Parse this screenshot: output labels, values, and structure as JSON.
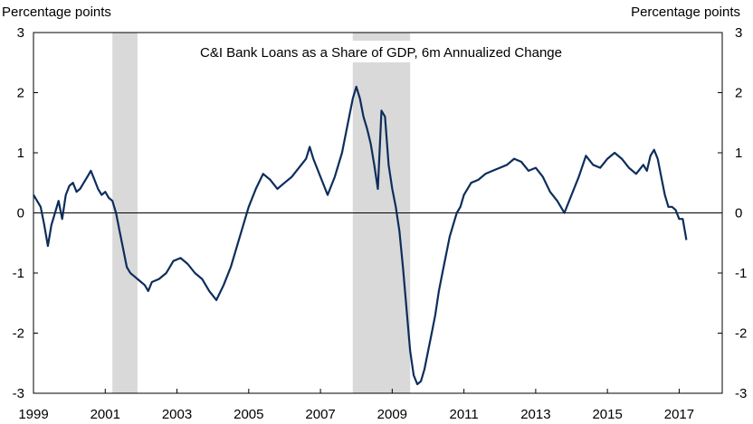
{
  "chart_data": {
    "type": "line",
    "title": "C&I Bank Loans as a Share of GDP, 6m Annualized Change",
    "ylabel_left": "Percentage points",
    "ylabel_right": "Percentage points",
    "xlim": [
      1999,
      2018.2
    ],
    "ylim": [
      -3,
      3
    ],
    "x_ticks": [
      "1999",
      "2001",
      "2003",
      "2005",
      "2007",
      "2009",
      "2011",
      "2013",
      "2015",
      "2017"
    ],
    "y_ticks": [
      "3",
      "2",
      "1",
      "0",
      "-1",
      "-2",
      "-3"
    ],
    "y_tick_values": [
      3,
      2,
      1,
      0,
      -1,
      -2,
      -3
    ],
    "x_tick_values": [
      1999,
      2001,
      2003,
      2005,
      2007,
      2009,
      2011,
      2013,
      2015,
      2017
    ],
    "recessions": [
      [
        2001.2,
        2001.9
      ],
      [
        2007.9,
        2009.5
      ]
    ],
    "zero_line": true,
    "grid": false,
    "colors": {
      "series": "#0d2d5c",
      "recession": "#d9d9d9",
      "axis": "#000000"
    },
    "series": [
      {
        "x": [
          1999.0,
          1999.1,
          1999.2,
          1999.3,
          1999.4,
          1999.5,
          1999.6,
          1999.7,
          1999.8,
          1999.9,
          2000.0,
          2000.1,
          2000.2,
          2000.3,
          2000.4,
          2000.5,
          2000.6,
          2000.7,
          2000.8,
          2000.9,
          2001.0,
          2001.1,
          2001.2,
          2001.3,
          2001.4,
          2001.5,
          2001.6,
          2001.7,
          2001.8,
          2001.9,
          2002.0,
          2002.1,
          2002.2,
          2002.3,
          2002.5,
          2002.7,
          2002.9,
          2003.1,
          2003.3,
          2003.5,
          2003.7,
          2003.9,
          2004.1,
          2004.3,
          2004.5,
          2004.7,
          2004.9,
          2005.0,
          2005.2,
          2005.4,
          2005.6,
          2005.8,
          2006.0,
          2006.2,
          2006.4,
          2006.6,
          2006.7,
          2006.8,
          2007.0,
          2007.2,
          2007.4,
          2007.6,
          2007.8,
          2007.9,
          2008.0,
          2008.1,
          2008.2,
          2008.3,
          2008.4,
          2008.5,
          2008.6,
          2008.7,
          2008.8,
          2008.9,
          2009.0,
          2009.1,
          2009.2,
          2009.3,
          2009.4,
          2009.5,
          2009.6,
          2009.7,
          2009.8,
          2009.9,
          2010.0,
          2010.1,
          2010.2,
          2010.3,
          2010.4,
          2010.5,
          2010.6,
          2010.7,
          2010.8,
          2010.9,
          2011.0,
          2011.2,
          2011.4,
          2011.6,
          2011.8,
          2012.0,
          2012.2,
          2012.4,
          2012.6,
          2012.8,
          2013.0,
          2013.2,
          2013.4,
          2013.6,
          2013.8,
          2014.0,
          2014.2,
          2014.4,
          2014.6,
          2014.8,
          2015.0,
          2015.2,
          2015.4,
          2015.6,
          2015.8,
          2016.0,
          2016.1,
          2016.2,
          2016.3,
          2016.4,
          2016.5,
          2016.6,
          2016.7,
          2016.8,
          2016.9,
          2017.0,
          2017.1,
          2017.2
        ],
        "values": [
          0.3,
          0.2,
          0.1,
          -0.2,
          -0.55,
          -0.2,
          0.0,
          0.2,
          -0.1,
          0.3,
          0.45,
          0.5,
          0.35,
          0.4,
          0.5,
          0.6,
          0.7,
          0.55,
          0.4,
          0.3,
          0.35,
          0.25,
          0.2,
          0.0,
          -0.3,
          -0.6,
          -0.9,
          -1.0,
          -1.05,
          -1.1,
          -1.15,
          -1.2,
          -1.3,
          -1.15,
          -1.1,
          -1.0,
          -0.8,
          -0.75,
          -0.85,
          -1.0,
          -1.1,
          -1.3,
          -1.45,
          -1.2,
          -0.9,
          -0.5,
          -0.1,
          0.1,
          0.4,
          0.65,
          0.55,
          0.4,
          0.5,
          0.6,
          0.75,
          0.9,
          1.1,
          0.9,
          0.6,
          0.3,
          0.6,
          1.0,
          1.6,
          1.9,
          2.1,
          1.9,
          1.6,
          1.4,
          1.15,
          0.8,
          0.4,
          1.7,
          1.6,
          0.8,
          0.4,
          0.1,
          -0.3,
          -0.9,
          -1.6,
          -2.3,
          -2.7,
          -2.85,
          -2.8,
          -2.6,
          -2.3,
          -2.0,
          -1.7,
          -1.3,
          -1.0,
          -0.7,
          -0.4,
          -0.2,
          0.0,
          0.1,
          0.3,
          0.5,
          0.55,
          0.65,
          0.7,
          0.75,
          0.8,
          0.9,
          0.85,
          0.7,
          0.75,
          0.6,
          0.35,
          0.2,
          0.0,
          0.3,
          0.6,
          0.95,
          0.8,
          0.75,
          0.9,
          1.0,
          0.9,
          0.75,
          0.65,
          0.8,
          0.7,
          0.95,
          1.05,
          0.9,
          0.6,
          0.3,
          0.1,
          0.1,
          0.05,
          -0.1,
          -0.1,
          -0.45
        ]
      }
    ]
  }
}
